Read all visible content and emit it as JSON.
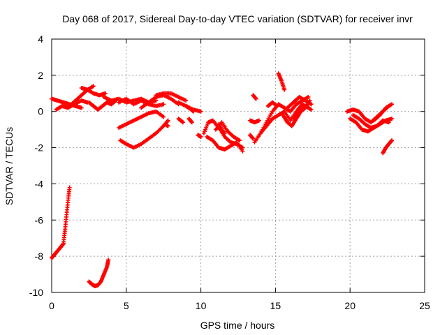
{
  "chart_data": {
    "type": "scatter",
    "title": "Day 068 of 2017, Sidereal Day-to-day VTEC variation (SDTVAR) for receiver invr",
    "xlabel": "GPS time / hours",
    "ylabel": "SDTVAR / TECUs",
    "xlim": [
      0,
      25
    ],
    "ylim": [
      -10,
      4
    ],
    "xticks": [
      0,
      5,
      10,
      15,
      20,
      25
    ],
    "yticks": [
      -10,
      -8,
      -6,
      -4,
      -2,
      0,
      2,
      4
    ],
    "grid": true,
    "marker": "+",
    "series": [
      {
        "name": "SDTVAR",
        "color": "#ff0000",
        "tracks": [
          {
            "x": [
              0.0,
              0.2,
              0.4,
              0.6,
              0.8
            ],
            "y": [
              -8.1,
              -7.9,
              -7.7,
              -7.5,
              -7.3
            ]
          },
          {
            "x": [
              0.8,
              0.9,
              1.0,
              1.1,
              1.2
            ],
            "y": [
              -7.2,
              -6.5,
              -5.7,
              -4.9,
              -4.2
            ]
          },
          {
            "x": [
              2.5,
              2.7,
              2.9,
              3.1,
              3.3,
              3.5,
              3.7,
              3.8
            ],
            "y": [
              -9.4,
              -9.55,
              -9.65,
              -9.6,
              -9.4,
              -9.0,
              -8.6,
              -8.2
            ]
          },
          {
            "x": [
              0.0,
              0.4,
              0.8,
              1.2,
              1.6,
              2.0
            ],
            "y": [
              0.7,
              0.6,
              0.5,
              0.4,
              0.3,
              0.2
            ]
          },
          {
            "x": [
              0.3,
              0.7,
              1.1,
              1.5,
              2.0,
              2.4
            ],
            "y": [
              0.1,
              0.3,
              0.2,
              0.4,
              0.6,
              0.5
            ]
          },
          {
            "x": [
              1.2,
              1.6,
              2.0,
              2.4,
              2.8
            ],
            "y": [
              0.3,
              0.6,
              0.9,
              1.2,
              1.4
            ]
          },
          {
            "x": [
              2.0,
              2.4,
              2.8,
              3.2,
              3.6
            ],
            "y": [
              1.3,
              1.2,
              1.0,
              0.9,
              1.0
            ]
          },
          {
            "x": [
              2.5,
              2.8,
              3.1,
              3.4,
              3.7,
              4.0,
              4.3
            ],
            "y": [
              0.5,
              0.3,
              0.1,
              0.3,
              0.5,
              0.4,
              0.6
            ]
          },
          {
            "x": [
              3.5,
              4.0,
              4.5,
              5.0,
              5.5,
              6.0,
              6.5,
              7.0
            ],
            "y": [
              0.8,
              0.6,
              0.7,
              0.5,
              0.6,
              0.7,
              0.5,
              0.6
            ]
          },
          {
            "x": [
              4.5,
              5.0,
              5.5,
              6.0,
              6.5,
              7.0,
              7.5
            ],
            "y": [
              0.5,
              0.7,
              0.4,
              0.6,
              0.4,
              0.3,
              0.4
            ]
          },
          {
            "x": [
              7.0,
              7.5,
              8.0,
              8.5,
              9.0
            ],
            "y": [
              0.9,
              1.0,
              1.0,
              0.8,
              0.6
            ]
          },
          {
            "x": [
              6.0,
              6.5,
              7.0,
              7.5,
              8.0,
              8.5
            ],
            "y": [
              0.2,
              0.5,
              0.8,
              0.9,
              0.7,
              0.4
            ]
          },
          {
            "x": [
              8.5,
              9.0,
              9.5,
              10.0
            ],
            "y": [
              0.5,
              0.3,
              0.1,
              0.0
            ]
          },
          {
            "x": [
              4.5,
              5.0,
              5.5,
              6.0,
              6.5,
              7.0,
              7.5
            ],
            "y": [
              -0.9,
              -0.7,
              -0.5,
              -0.3,
              -0.1,
              0.0,
              -0.3
            ]
          },
          {
            "x": [
              4.6,
              5.0,
              5.5,
              6.0,
              6.5,
              7.0,
              7.5,
              7.8
            ],
            "y": [
              -1.6,
              -1.8,
              -2.0,
              -1.8,
              -1.5,
              -1.2,
              -0.8,
              -0.5
            ]
          },
          {
            "x": [
              7.6,
              7.8
            ],
            "y": [
              -0.7,
              -0.8
            ]
          },
          {
            "x": [
              9.0,
              9.2,
              9.5
            ],
            "y": [
              0.3,
              0.2,
              0.0
            ]
          },
          {
            "x": [
              9.2,
              9.4
            ],
            "y": [
              -0.4,
              -0.6
            ]
          },
          {
            "x": [
              8.5,
              8.8
            ],
            "y": [
              -0.4,
              -0.6
            ]
          },
          {
            "x": [
              9.8,
              10.0
            ],
            "y": [
              -1.3,
              -1.4
            ]
          },
          {
            "x": [
              10.2,
              10.5,
              10.8,
              11.2,
              11.6,
              12.0,
              12.4,
              12.8
            ],
            "y": [
              -1.2,
              -0.6,
              -0.5,
              -0.9,
              -1.4,
              -1.7,
              -1.8,
              -2.0
            ]
          },
          {
            "x": [
              10.4,
              10.8,
              11.2,
              11.6,
              12.0,
              12.4,
              12.8
            ],
            "y": [
              -1.4,
              -1.6,
              -2.0,
              -2.1,
              -1.9,
              -1.7,
              -2.2
            ]
          },
          {
            "x": [
              11.0,
              11.4,
              11.8,
              12.2,
              12.6
            ],
            "y": [
              -1.0,
              -0.6,
              -1.1,
              -1.4,
              -1.6
            ]
          },
          {
            "x": [
              11.2,
              11.6
            ],
            "y": [
              -0.7,
              -1.2
            ]
          },
          {
            "x": [
              13.3,
              13.6,
              13.9
            ],
            "y": [
              -0.5,
              -0.6,
              -0.5
            ]
          },
          {
            "x": [
              13.5,
              13.7
            ],
            "y": [
              0.9,
              0.7
            ]
          },
          {
            "x": [
              13.3,
              13.5
            ],
            "y": [
              -1.3,
              -1.5
            ]
          },
          {
            "x": [
              13.6,
              14.0,
              14.4,
              14.8,
              15.2,
              15.6,
              16.0,
              16.4,
              16.8,
              17.2
            ],
            "y": [
              -1.7,
              -1.2,
              -0.6,
              0.0,
              0.4,
              0.2,
              0.0,
              0.4,
              0.6,
              0.8
            ]
          },
          {
            "x": [
              14.0,
              14.4,
              14.8,
              15.2,
              15.6,
              16.0,
              16.4,
              16.8,
              17.2
            ],
            "y": [
              -1.2,
              -0.8,
              -0.4,
              -0.2,
              0.0,
              -0.5,
              0.0,
              0.4,
              0.2
            ]
          },
          {
            "x": [
              14.5,
              14.8,
              15.1
            ],
            "y": [
              0.3,
              0.5,
              0.3
            ]
          },
          {
            "x": [
              15.2,
              15.4,
              15.6
            ],
            "y": [
              2.1,
              1.7,
              1.2
            ]
          },
          {
            "x": [
              15.5,
              15.8,
              16.1,
              16.4,
              16.7,
              17.0,
              17.3
            ],
            "y": [
              -0.2,
              -0.6,
              -0.8,
              -0.4,
              0.0,
              0.2,
              0.6
            ]
          },
          {
            "x": [
              15.8,
              16.2,
              16.6,
              17.0,
              17.4
            ],
            "y": [
              0.2,
              0.5,
              0.8,
              0.6,
              0.4
            ]
          },
          {
            "x": [
              16.2,
              16.6,
              17.0,
              17.4
            ],
            "y": [
              -0.4,
              0.0,
              0.3,
              0.1
            ]
          },
          {
            "x": [
              19.8,
              20.2,
              20.6,
              21.0,
              21.4,
              21.8,
              22.2,
              22.6
            ],
            "y": [
              0.0,
              0.1,
              0.0,
              -0.4,
              -0.6,
              -0.3,
              0.0,
              0.3
            ]
          },
          {
            "x": [
              20.0,
              20.4,
              20.8,
              21.2,
              21.6,
              22.0,
              22.4,
              22.8
            ],
            "y": [
              -0.4,
              -0.6,
              -1.0,
              -1.1,
              -0.9,
              -0.7,
              -0.5,
              -0.4
            ]
          },
          {
            "x": [
              20.2,
              20.6,
              21.0,
              21.4,
              21.8,
              22.2,
              22.6
            ],
            "y": [
              -0.2,
              -0.4,
              -0.7,
              -0.9,
              -0.8,
              -0.5,
              -0.6
            ]
          },
          {
            "x": [
              21.6,
              22.0,
              22.4,
              22.8
            ],
            "y": [
              -0.5,
              -0.2,
              0.2,
              0.4
            ]
          },
          {
            "x": [
              22.2,
              22.4,
              22.6,
              22.8
            ],
            "y": [
              -2.3,
              -2.0,
              -1.8,
              -1.6
            ]
          }
        ]
      }
    ]
  }
}
